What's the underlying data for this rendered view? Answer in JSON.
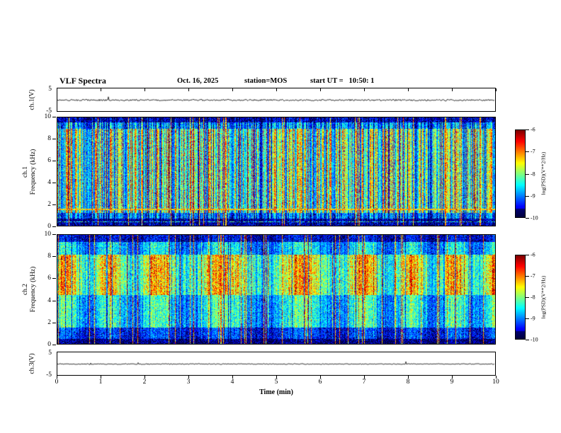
{
  "header": {
    "title": "VLF Spectra",
    "date": "Oct. 16, 2025",
    "station": "station=MOS",
    "start_ut": "start UT =   10:50: 1"
  },
  "axes": {
    "x_label": "Time (min)",
    "x_ticks": [
      "0",
      "1",
      "2",
      "3",
      "4",
      "5",
      "6",
      "7",
      "8",
      "9",
      "10"
    ],
    "freq_ticks": [
      "0",
      "2",
      "4",
      "6",
      "8",
      "10"
    ],
    "wave_ymax": "5",
    "wave_ymin": "-5"
  },
  "panels": {
    "ch1_wave_label": "ch.1(V)",
    "ch1_spec_channel": "ch.1",
    "ch1_spec_axis": "Frequency (kHz)",
    "ch2_spec_channel": "ch.2",
    "ch2_spec_axis": "Frequency (kHz)",
    "ch3_wave_label": "ch.3(V)"
  },
  "colorbar": {
    "label": "log(PSD)(V**2/Hz)",
    "ticks": [
      "-6",
      "-7",
      "-8",
      "-9",
      "-10"
    ]
  },
  "colors": {
    "background": "#ffffff",
    "axis": "#000000",
    "spec_low": "#000033",
    "spec_high": "#ff0000",
    "colormap": "jet"
  },
  "chart_data": [
    {
      "type": "line",
      "name": "ch.1(V) amplitude trace",
      "xlim": [
        0,
        10
      ],
      "xlabel": "Time (min)",
      "ylim": [
        -5,
        5
      ],
      "ylabel": "ch.1(V)",
      "description": "near-constant trace at ~0 V with low-amplitude noise across full 10 minutes"
    },
    {
      "type": "heatmap",
      "name": "ch.1 spectrogram",
      "xlim": [
        0,
        10
      ],
      "xlabel": "Time (min)",
      "ylim": [
        0,
        10
      ],
      "ylabel": "Frequency (kHz)",
      "zlim": [
        -10,
        -6
      ],
      "zlabel": "log(PSD)(V**2/Hz)",
      "colormap": "jet",
      "features": [
        "dense vertical sferic striations ~1-9 kHz in green-yellow with sporadic red impulses",
        "dark blue/black background band below ~0.8 kHz",
        "persistent narrowband line near 1.5 kHz",
        "mostly dark above ~9.5 kHz with occasional streaks reaching the top"
      ]
    },
    {
      "type": "heatmap",
      "name": "ch.2 spectrogram",
      "xlim": [
        0,
        10
      ],
      "xlabel": "Time (min)",
      "ylim": [
        0,
        10
      ],
      "ylabel": "Frequency (kHz)",
      "zlim": [
        -10,
        -6
      ],
      "zlabel": "log(PSD)(V**2/Hz)",
      "colormap": "jet",
      "features": [
        "intense orange-red emission band ~4.5-8 kHz with quasi-periodic brightenings",
        "green bands ~1.5-4.5 kHz and ~8-9.5 kHz",
        "dark band below ~1 kHz",
        "occasional full-height impulsive vertical streaks"
      ]
    },
    {
      "type": "line",
      "name": "ch.3(V) amplitude trace",
      "xlim": [
        0,
        10
      ],
      "xlabel": "Time (min)",
      "ylim": [
        -5,
        5
      ],
      "ylabel": "ch.3(V)",
      "description": "near-constant trace at ~0 V with very low noise"
    }
  ]
}
